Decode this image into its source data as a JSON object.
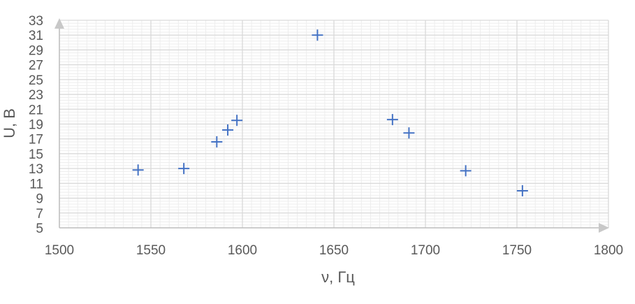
{
  "chart_data": {
    "type": "scatter",
    "xlabel": "ν, Гц",
    "ylabel": "U, В",
    "xlim": [
      1500,
      1800
    ],
    "ylim": [
      5,
      33
    ],
    "x_ticks": [
      1500,
      1550,
      1600,
      1650,
      1700,
      1750,
      1800
    ],
    "y_ticks": [
      5,
      7,
      9,
      11,
      13,
      15,
      17,
      19,
      21,
      23,
      25,
      27,
      29,
      31,
      33
    ],
    "grid": true,
    "marker": "plus",
    "colors": {
      "marker": "#4472c4",
      "major_grid": "#d9d9d9",
      "minor_grid": "#ededed",
      "axis": "#bfbfbf",
      "arrow": "#c8c8c8"
    },
    "series": [
      {
        "points": [
          {
            "x": 1543,
            "y": 12.8
          },
          {
            "x": 1568,
            "y": 13.0
          },
          {
            "x": 1586,
            "y": 16.6
          },
          {
            "x": 1592,
            "y": 18.2
          },
          {
            "x": 1597,
            "y": 19.5
          },
          {
            "x": 1641,
            "y": 31.0
          },
          {
            "x": 1682,
            "y": 19.6
          },
          {
            "x": 1691,
            "y": 17.8
          },
          {
            "x": 1722,
            "y": 12.7
          },
          {
            "x": 1753,
            "y": 10.0
          }
        ]
      }
    ]
  }
}
